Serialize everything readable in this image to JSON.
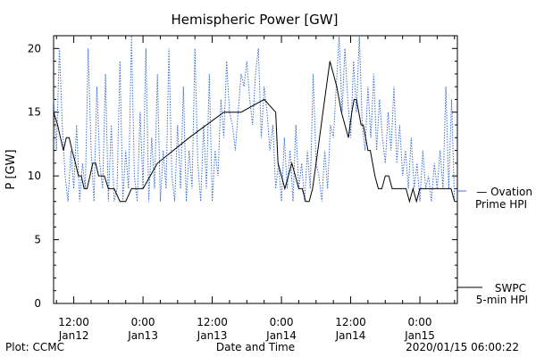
{
  "chart_data": {
    "type": "line",
    "title": "Hemispheric Power [GW]",
    "ylabel": "P [GW]",
    "xlabel": "Date and Time",
    "ylim": [
      0,
      21
    ],
    "yticks": [
      0,
      5,
      10,
      15,
      20
    ],
    "x_unit": "hours since 2020-01-11 12:00",
    "xlim": [
      -3.5,
      66.5
    ],
    "xticks": [
      {
        "x": 0,
        "time": "12:00",
        "date": "Jan12"
      },
      {
        "x": 12,
        "time": "0:00",
        "date": "Jan13"
      },
      {
        "x": 24,
        "time": "12:00",
        "date": "Jan13"
      },
      {
        "x": 36,
        "time": "0:00",
        "date": "Jan14"
      },
      {
        "x": 48,
        "time": "12:00",
        "date": "Jan14"
      },
      {
        "x": 60,
        "time": "0:00",
        "date": "Jan15"
      }
    ],
    "series": [
      {
        "name": "SWPC 5-min HPI",
        "color": "#000000",
        "style": "solid",
        "x": [
          -3.5,
          -2.8,
          -2.3,
          -1.8,
          -1.3,
          -0.8,
          -0.3,
          0.3,
          0.8,
          1.3,
          1.8,
          2.3,
          2.8,
          3.3,
          3.8,
          4.3,
          4.8,
          5.3,
          6.0,
          7.0,
          8.0,
          9.0,
          10.0,
          11.0,
          12.0,
          14.5,
          20.0,
          26.0,
          29.0,
          31.0,
          33.0,
          35.0,
          35.4,
          36.0,
          36.6,
          37.2,
          37.8,
          38.4,
          39.0,
          39.6,
          40.2,
          40.8,
          41.4,
          42.0,
          42.6,
          43.2,
          43.8,
          44.4,
          45.0,
          45.6,
          46.4,
          47.0,
          47.6,
          48.2,
          48.6,
          49.0,
          49.4,
          49.8,
          50.2,
          50.6,
          51.0,
          51.4,
          51.8,
          52.2,
          52.8,
          53.4,
          54.0,
          54.6,
          55.2,
          55.8,
          56.4,
          57.0,
          57.6,
          58.2,
          58.8,
          59.4,
          60.0,
          60.6,
          61.2,
          61.8,
          62.4,
          63.0,
          63.6,
          64.2,
          64.8,
          65.4,
          66.0
        ],
        "y": [
          15,
          14,
          13,
          12,
          13,
          13,
          12,
          11,
          10,
          10,
          9,
          9,
          10,
          11,
          11,
          10,
          10,
          10,
          9,
          9,
          8,
          8,
          9,
          9,
          9,
          11,
          13,
          15,
          15,
          15.5,
          16,
          15,
          11,
          10,
          9,
          10,
          11,
          10,
          9,
          9,
          8,
          8,
          9,
          11,
          13,
          15,
          17,
          19,
          18,
          17,
          15,
          14,
          13,
          15,
          16,
          16,
          15,
          14,
          14,
          13,
          12,
          12,
          11,
          10,
          9,
          9,
          10,
          10,
          9,
          9,
          9,
          9,
          9,
          8,
          9,
          8,
          9,
          9,
          9,
          9,
          9,
          9,
          9,
          9,
          9,
          9,
          8
        ]
      },
      {
        "name": "Ovation Prime HPI",
        "color": "#3a6fd0",
        "style": "dotted",
        "x": [
          -3.5,
          -3.0,
          -2.5,
          -2.0,
          -1.5,
          -1.0,
          -0.5,
          0.0,
          0.5,
          1.0,
          1.5,
          2.0,
          2.5,
          3.0,
          3.5,
          4.0,
          4.5,
          5.0,
          5.5,
          6.0,
          6.5,
          7.0,
          7.5,
          8.0,
          8.5,
          9.0,
          9.5,
          10.0,
          10.5,
          11.0,
          11.5,
          12.0,
          12.5,
          13.0,
          13.5,
          14.0,
          14.5,
          15.0,
          15.5,
          16.0,
          16.5,
          17.0,
          17.5,
          18.0,
          18.5,
          19.0,
          19.5,
          20.0,
          20.5,
          21.0,
          21.5,
          22.0,
          22.5,
          23.0,
          23.5,
          24.0,
          24.5,
          25.0,
          25.5,
          26.0,
          26.5,
          27.0,
          27.5,
          28.0,
          28.5,
          29.0,
          29.5,
          30.0,
          30.5,
          31.0,
          31.5,
          32.0,
          32.5,
          33.0,
          33.5,
          34.0,
          34.5,
          35.0,
          35.5,
          36.0,
          36.5,
          37.0,
          37.5,
          38.0,
          38.5,
          39.0,
          39.5,
          40.0,
          40.5,
          41.0,
          41.5,
          42.0,
          42.5,
          43.0,
          43.5,
          44.0,
          44.5,
          45.0,
          45.5,
          46.0,
          46.5,
          47.0,
          47.5,
          48.0,
          48.5,
          49.0,
          49.5,
          50.0,
          50.5,
          51.0,
          51.5,
          52.0,
          52.5,
          53.0,
          53.5,
          54.0,
          54.5,
          55.0,
          55.5,
          56.0,
          56.5,
          57.0,
          57.5,
          58.0,
          58.5,
          59.0,
          59.5,
          60.0,
          60.5,
          61.0,
          61.5,
          62.0,
          62.5,
          63.0,
          63.5,
          64.0,
          64.5,
          65.0,
          65.5,
          66.0
        ],
        "y": [
          16,
          12,
          20,
          14,
          10,
          8,
          12,
          9,
          14,
          8,
          11,
          9,
          20,
          12,
          8,
          17,
          11,
          9,
          18,
          8,
          14,
          8,
          9,
          19,
          8,
          12,
          9,
          21,
          10,
          8,
          15,
          9,
          20,
          8,
          13,
          9,
          18,
          8,
          12,
          9,
          20,
          10,
          8,
          14,
          9,
          17,
          8,
          12,
          9,
          20,
          11,
          8,
          14,
          9,
          18,
          8,
          12,
          10,
          16,
          13,
          19,
          15,
          14,
          12,
          15,
          18,
          17,
          19,
          16,
          14,
          18,
          20,
          13,
          17,
          15,
          12,
          14,
          9,
          11,
          8,
          13,
          9,
          12,
          8,
          14,
          9,
          11,
          8,
          12,
          9,
          18,
          11,
          10,
          8,
          12,
          9,
          14,
          13,
          17,
          21,
          15,
          20,
          16,
          13,
          19,
          15,
          21,
          14,
          12,
          17,
          13,
          18,
          12,
          16,
          13,
          11,
          15,
          12,
          17,
          11,
          14,
          10,
          12,
          9,
          13,
          9,
          11,
          8,
          12,
          9,
          10,
          8,
          11,
          9,
          12,
          9,
          17,
          9,
          16,
          8
        ]
      }
    ],
    "legend": [
      {
        "label1": "— Ovation",
        "label2": "Prime HPI",
        "color": "#3a6fd0"
      },
      {
        "label1": "SWPC",
        "label2": "5-min HPI",
        "color": "#000000"
      }
    ]
  },
  "footer": {
    "left": "Plot: CCMC",
    "center": "Date and Time",
    "right": "2020/01/15 06:00:22"
  }
}
